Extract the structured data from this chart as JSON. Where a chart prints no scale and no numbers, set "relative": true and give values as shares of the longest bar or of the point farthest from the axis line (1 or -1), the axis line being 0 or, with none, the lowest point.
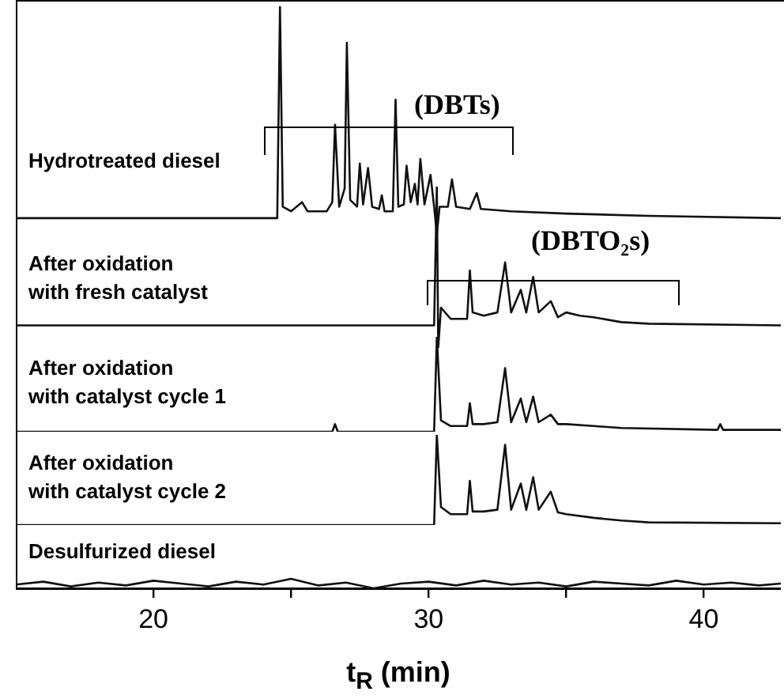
{
  "chart_data": [
    {
      "type": "line",
      "title": "Hydrotreated diesel",
      "annotations": [
        "(DBTs)"
      ],
      "relative": true,
      "xlim": [
        15,
        42.8
      ],
      "tick_labels": false,
      "x": [
        15,
        18,
        22,
        24.4,
        24.5,
        24.6,
        24.7,
        25.0,
        25.4,
        25.6,
        26.3,
        26.5,
        26.6,
        26.75,
        26.95,
        27.03,
        27.15,
        27.4,
        27.5,
        27.62,
        27.8,
        27.95,
        28.2,
        28.3,
        28.4,
        28.7,
        28.8,
        28.9,
        29.1,
        29.2,
        29.35,
        29.5,
        29.6,
        29.7,
        29.85,
        30.07,
        30.2,
        30.3,
        30.4,
        30.7,
        30.85,
        31.0,
        31.5,
        31.75,
        31.9,
        33,
        35,
        38,
        42.8
      ],
      "series": [
        {
          "color": "#111111",
          "values": [
            0.07,
            0.07,
            0.07,
            0.07,
            0.07,
            1.0,
            0.12,
            0.1,
            0.14,
            0.1,
            0.1,
            0.14,
            0.48,
            0.12,
            0.2,
            0.84,
            0.15,
            0.12,
            0.31,
            0.13,
            0.29,
            0.12,
            0.11,
            0.17,
            0.1,
            0.1,
            0.59,
            0.12,
            0.13,
            0.3,
            0.14,
            0.22,
            0.13,
            0.33,
            0.13,
            0.26,
            0.12,
            0,
            0.12,
            0.12,
            0.24,
            0.12,
            0.11,
            0.18,
            0.11,
            0.1,
            0.09,
            0.08,
            0.07
          ]
        }
      ]
    },
    {
      "type": "line",
      "title": "After oxidation with fresh catalyst",
      "annotations": [
        "(DBTO₂s)"
      ],
      "relative": true,
      "xlim": [
        15,
        42.8
      ],
      "tick_labels": false,
      "x": [
        15,
        20,
        25,
        30.2,
        30.3,
        30.35,
        30.45,
        30.8,
        31.4,
        31.5,
        31.6,
        32.0,
        32.5,
        32.78,
        33.0,
        33.35,
        33.55,
        33.8,
        34.0,
        34.44,
        34.7,
        35,
        35.5,
        36,
        37,
        38,
        42.8
      ],
      "series": [
        {
          "color": "#111111",
          "values": [
            0.14,
            0.14,
            0.14,
            0.14,
            1.0,
            0,
            0.25,
            0.18,
            0.18,
            0.48,
            0.22,
            0.2,
            0.22,
            0.53,
            0.22,
            0.36,
            0.22,
            0.44,
            0.22,
            0.29,
            0.19,
            0.22,
            0.2,
            0.19,
            0.16,
            0.15,
            0.14
          ]
        }
      ]
    },
    {
      "type": "line",
      "title": "After oxidation with catalyst cycle 1",
      "relative": true,
      "xlim": [
        15,
        42.8
      ],
      "tick_labels": false,
      "x": [
        15,
        20,
        26.5,
        26.6,
        26.7,
        30.2,
        30.3,
        30.45,
        30.8,
        31.4,
        31.5,
        31.6,
        32.0,
        32.5,
        32.78,
        33.0,
        33.35,
        33.55,
        33.8,
        34.0,
        34.44,
        34.7,
        35,
        36,
        37,
        40.5,
        40.6,
        40.7,
        42.8
      ],
      "series": [
        {
          "color": "#111111",
          "values": [
            0,
            0,
            0,
            0.08,
            0,
            0,
            1.0,
            0.12,
            0.06,
            0.06,
            0.3,
            0.08,
            0.08,
            0.1,
            0.67,
            0.1,
            0.35,
            0.1,
            0.37,
            0.1,
            0.18,
            0.08,
            0.08,
            0.06,
            0.04,
            0.02,
            0.08,
            0.02,
            0.02
          ]
        }
      ]
    },
    {
      "type": "line",
      "title": "After oxidation with catalyst cycle 2",
      "relative": true,
      "xlim": [
        15,
        42.8
      ],
      "tick_labels": false,
      "x": [
        15,
        20,
        25,
        30.2,
        30.3,
        30.45,
        30.8,
        31.4,
        31.5,
        31.6,
        32.0,
        32.5,
        32.78,
        33.0,
        33.35,
        33.55,
        33.8,
        34.0,
        34.44,
        34.7,
        35,
        36,
        37,
        38,
        42.8
      ],
      "series": [
        {
          "color": "#111111",
          "values": [
            0,
            0,
            0,
            0,
            1.0,
            0.2,
            0.12,
            0.12,
            0.49,
            0.15,
            0.15,
            0.17,
            0.89,
            0.17,
            0.46,
            0.17,
            0.53,
            0.17,
            0.37,
            0.14,
            0.12,
            0.08,
            0.05,
            0.03,
            0.02
          ]
        }
      ]
    },
    {
      "type": "line",
      "title": "Desulfurized diesel",
      "xlabel": "t$_{R}$ (min)",
      "relative": true,
      "xlim": [
        15,
        42.8
      ],
      "xticks": [
        20,
        {
          "value": 25,
          "label": null
        },
        30,
        {
          "value": 35,
          "label": null
        },
        40
      ],
      "x": [
        15,
        16,
        17,
        18,
        19,
        20,
        21,
        22,
        23,
        24,
        25,
        26,
        27,
        28,
        29,
        30,
        31,
        32,
        33,
        34,
        35,
        36,
        37,
        38,
        39,
        40,
        41,
        42,
        42.8
      ],
      "series": [
        {
          "color": "#111111",
          "values": [
            0.4,
            0.7,
            0.2,
            0.6,
            0.3,
            0.8,
            0.5,
            0.2,
            0.7,
            0.4,
            1,
            0.3,
            0.6,
            0,
            0.5,
            0.7,
            0.3,
            0.8,
            0.4,
            0.6,
            0.2,
            0.7,
            0.5,
            0.3,
            0.8,
            0.4,
            0.6,
            0.3,
            0.5
          ]
        }
      ]
    }
  ]
}
